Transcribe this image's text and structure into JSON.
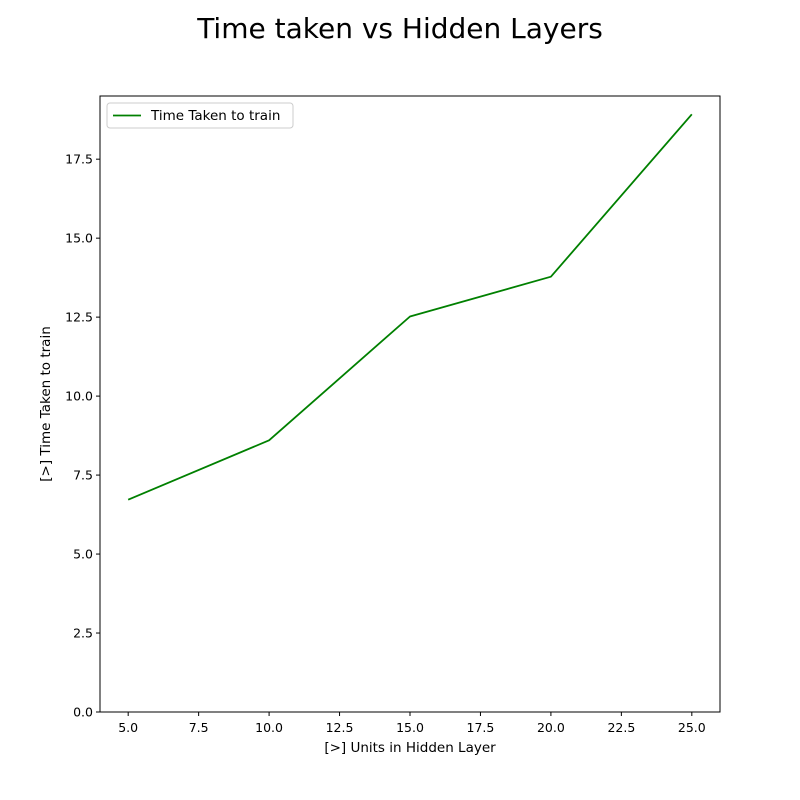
{
  "chart_data": {
    "type": "line",
    "title": "Time taken vs Hidden Layers",
    "xlabel": "[>] Units in Hidden Layer",
    "ylabel": "[>] Time Taken to train",
    "x": [
      5,
      10,
      15,
      20,
      25
    ],
    "series": [
      {
        "name": "Time Taken to train",
        "color": "#008000",
        "values": [
          6.72,
          8.6,
          12.52,
          13.78,
          18.92
        ]
      }
    ],
    "xlim": [
      4,
      26
    ],
    "ylim": [
      0,
      19.5
    ],
    "xticks": [
      "5.0",
      "7.5",
      "10.0",
      "12.5",
      "15.0",
      "17.5",
      "20.0",
      "22.5",
      "25.0"
    ],
    "yticks": [
      "0.0",
      "2.5",
      "5.0",
      "7.5",
      "10.0",
      "12.5",
      "15.0",
      "17.5"
    ],
    "grid": false,
    "legend_position": "top-left"
  }
}
